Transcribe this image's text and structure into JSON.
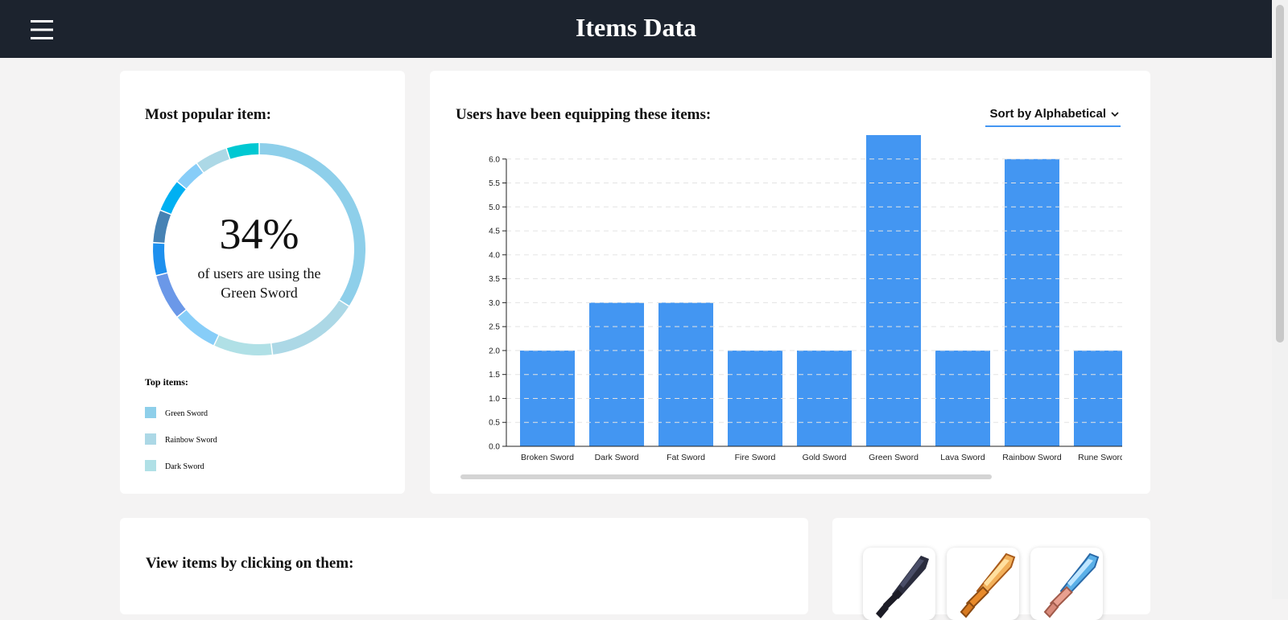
{
  "header": {
    "title": "Items Data"
  },
  "chart_data": [
    {
      "type": "donut",
      "title": "Most popular item:",
      "categories": [
        "Green Sword",
        "Rainbow Sword",
        "Dark Sword",
        null,
        null,
        null,
        null,
        null,
        null,
        null,
        null
      ],
      "values": [
        34,
        14,
        9,
        7,
        7,
        5,
        5,
        5,
        4,
        5,
        5
      ],
      "value_labels": [
        "34%",
        null,
        null,
        null,
        null,
        null,
        null,
        null,
        null,
        null,
        null
      ],
      "colors": [
        "#8ecfea",
        "#acd8e6",
        "#b0e0e6",
        "#87cdf8",
        "#6b98e8",
        "#1e90ee",
        "#4682b4",
        "#00b0f2",
        "#87cdf8",
        "#acd8e6",
        "#00c8d2"
      ],
      "caption": "of users are using the Green Sword",
      "legend_title": "Top items:"
    },
    {
      "type": "bar",
      "title": "Users have been equipping these items:",
      "categories": [
        "Broken Sword",
        "Dark Sword",
        "Fat Sword",
        "Fire Sword",
        "Gold Sword",
        "Green Sword",
        "Lava Sword",
        "Rainbow Sword",
        "Rune Sword"
      ],
      "values": [
        2,
        3,
        3,
        2,
        2,
        6.5,
        2,
        6,
        2
      ],
      "color": "#4396f2",
      "ylim": [
        0,
        6.5
      ],
      "yticks": [
        {
          "value": 0,
          "label": "0.0"
        },
        {
          "value": 0.5,
          "label": "0.5"
        },
        {
          "value": 1,
          "label": "1.0"
        },
        {
          "value": 1.5,
          "label": "1.5"
        },
        {
          "value": 2,
          "label": "2.0"
        },
        {
          "value": 2.5,
          "label": "2.5"
        },
        {
          "value": 3,
          "label": "3.0"
        },
        {
          "value": 3.5,
          "label": "3.5"
        },
        {
          "value": 4,
          "label": "4.0"
        },
        {
          "value": 4.5,
          "label": "4.5"
        },
        {
          "value": 5,
          "label": "5.0"
        },
        {
          "value": 5.5,
          "label": "5.5"
        },
        {
          "value": 6,
          "label": "6.0"
        }
      ],
      "grid": true
    }
  ],
  "sort": {
    "label": "Sort by Alphabetical"
  },
  "items_panel": {
    "title": "View items by clicking on them:"
  }
}
